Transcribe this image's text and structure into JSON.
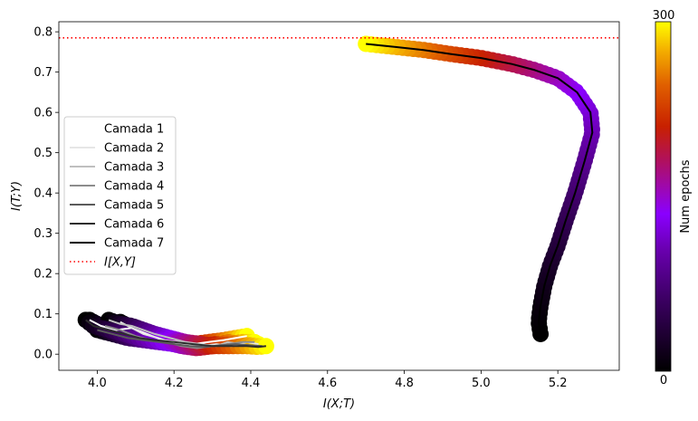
{
  "chart_data": {
    "type": "scatter",
    "title": "",
    "xlabel": "I(X;T)",
    "ylabel": "I(T;Y)",
    "xlim": [
      3.9,
      5.36
    ],
    "ylim": [
      -0.04,
      0.825
    ],
    "xticks": [
      "4.0",
      "4.2",
      "4.4",
      "4.6",
      "4.8",
      "5.0",
      "5.2"
    ],
    "xtick_values": [
      4.0,
      4.2,
      4.4,
      4.6,
      4.8,
      5.0,
      5.2
    ],
    "yticks": [
      "0.0",
      "0.1",
      "0.2",
      "0.3",
      "0.4",
      "0.5",
      "0.6",
      "0.7",
      "0.8"
    ],
    "ytick_values": [
      0.0,
      0.1,
      0.2,
      0.3,
      0.4,
      0.5,
      0.6,
      0.7,
      0.8
    ],
    "reference_line": {
      "label": "I[X,Y]",
      "y": 0.785,
      "color": "#ff0000",
      "style": "dotted"
    },
    "colorbar": {
      "label": "Num epochs",
      "min_label": "0",
      "max_label": "300",
      "min": 0,
      "max": 300,
      "colormap": "gnuplot"
    },
    "legend_position": "center-left",
    "series": [
      {
        "name": "Camada 1",
        "color": "#ffffff",
        "points": [
          [
            3.98,
            0.085
          ],
          [
            4.01,
            0.07
          ],
          [
            4.05,
            0.06
          ],
          [
            4.09,
            0.065
          ],
          [
            4.13,
            0.05
          ],
          [
            4.17,
            0.035
          ],
          [
            4.21,
            0.03
          ],
          [
            4.25,
            0.025
          ],
          [
            4.29,
            0.03
          ],
          [
            4.33,
            0.035
          ],
          [
            4.36,
            0.04
          ],
          [
            4.39,
            0.045
          ]
        ]
      },
      {
        "name": "Camada 2",
        "color": "#e6e6e6",
        "points": [
          [
            4.06,
            0.08
          ],
          [
            4.09,
            0.065
          ],
          [
            4.12,
            0.05
          ],
          [
            4.16,
            0.04
          ],
          [
            4.19,
            0.03
          ],
          [
            4.23,
            0.025
          ],
          [
            4.27,
            0.02
          ],
          [
            4.31,
            0.025
          ],
          [
            4.35,
            0.02
          ],
          [
            4.39,
            0.03
          ],
          [
            4.42,
            0.025
          ]
        ]
      },
      {
        "name": "Camada 3",
        "color": "#bfbfbf",
        "points": [
          [
            4.03,
            0.085
          ],
          [
            4.06,
            0.075
          ],
          [
            4.09,
            0.07
          ],
          [
            4.12,
            0.06
          ],
          [
            4.15,
            0.05
          ],
          [
            4.19,
            0.04
          ],
          [
            4.23,
            0.03
          ],
          [
            4.27,
            0.025
          ],
          [
            4.31,
            0.02
          ],
          [
            4.34,
            0.03
          ],
          [
            4.37,
            0.025
          ],
          [
            4.4,
            0.02
          ]
        ]
      },
      {
        "name": "Camada 4",
        "color": "#8c8c8c",
        "points": [
          [
            4.02,
            0.07
          ],
          [
            4.06,
            0.06
          ],
          [
            4.1,
            0.045
          ],
          [
            4.14,
            0.035
          ],
          [
            4.18,
            0.03
          ],
          [
            4.22,
            0.02
          ],
          [
            4.26,
            0.015
          ],
          [
            4.3,
            0.02
          ],
          [
            4.34,
            0.025
          ],
          [
            4.38,
            0.03
          ],
          [
            4.41,
            0.03
          ]
        ]
      },
      {
        "name": "Camada 5",
        "color": "#5a5a5a",
        "points": [
          [
            4.0,
            0.06
          ],
          [
            4.04,
            0.05
          ],
          [
            4.08,
            0.04
          ],
          [
            4.12,
            0.035
          ],
          [
            4.16,
            0.03
          ],
          [
            4.2,
            0.025
          ],
          [
            4.24,
            0.02
          ],
          [
            4.28,
            0.018
          ],
          [
            4.32,
            0.022
          ],
          [
            4.36,
            0.025
          ],
          [
            4.4,
            0.022
          ],
          [
            4.43,
            0.02
          ]
        ]
      },
      {
        "name": "Camada 6",
        "color": "#2d2d2d",
        "points": [
          [
            3.97,
            0.085
          ],
          [
            3.99,
            0.07
          ],
          [
            4.03,
            0.06
          ],
          [
            4.07,
            0.05
          ],
          [
            4.11,
            0.04
          ],
          [
            4.15,
            0.035
          ],
          [
            4.2,
            0.03
          ],
          [
            4.25,
            0.025
          ],
          [
            4.3,
            0.02
          ],
          [
            4.35,
            0.02
          ],
          [
            4.39,
            0.02
          ],
          [
            4.42,
            0.018
          ],
          [
            4.44,
            0.02
          ]
        ]
      },
      {
        "name": "Camada 7",
        "color": "#000000",
        "points": [
          [
            5.155,
            0.05
          ],
          [
            5.15,
            0.08
          ],
          [
            5.155,
            0.12
          ],
          [
            5.165,
            0.17
          ],
          [
            5.18,
            0.22
          ],
          [
            5.2,
            0.27
          ],
          [
            5.22,
            0.33
          ],
          [
            5.245,
            0.4
          ],
          [
            5.27,
            0.48
          ],
          [
            5.29,
            0.55
          ],
          [
            5.285,
            0.6
          ],
          [
            5.25,
            0.65
          ],
          [
            5.2,
            0.685
          ],
          [
            5.14,
            0.705
          ],
          [
            5.08,
            0.72
          ],
          [
            5.0,
            0.735
          ],
          [
            4.92,
            0.745
          ],
          [
            4.85,
            0.755
          ],
          [
            4.78,
            0.762
          ],
          [
            4.72,
            0.768
          ],
          [
            4.7,
            0.77
          ]
        ]
      }
    ]
  }
}
